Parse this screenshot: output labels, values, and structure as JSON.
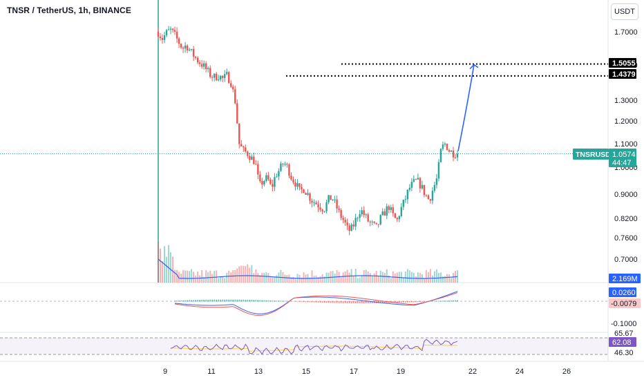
{
  "header": {
    "title": "TNSR / TetherUS, 1h, BINANCE",
    "currency": "USDT"
  },
  "chart_data": [
    {
      "type": "candlestick",
      "panel": "price",
      "symbol": "TNSRUSDT",
      "y_ticks": [
        "1.7000",
        "1.5000",
        "1.3000",
        "1.2000",
        "1.1000",
        "1.0000",
        "0.9000",
        "0.8200",
        "0.7600",
        "0.7000"
      ],
      "x_ticks": [
        "9",
        "11",
        "13",
        "15",
        "17",
        "19",
        "22",
        "24",
        "26"
      ],
      "last_price": "1.0574",
      "countdown": "44:47",
      "price_levels": [
        {
          "label": "1.5055",
          "value": 1.5055
        },
        {
          "label": "1.4379",
          "value": 1.4379
        }
      ],
      "projection": {
        "from_value": 1.06,
        "to_value": 1.5055
      },
      "approx_closes": [
        1.7,
        1.66,
        1.69,
        1.71,
        1.68,
        1.64,
        1.6,
        1.62,
        1.58,
        1.55,
        1.52,
        1.5,
        1.47,
        1.44,
        1.43,
        1.44,
        1.42,
        1.44,
        1.4,
        1.3,
        1.1,
        1.07,
        1.06,
        1.04,
        1.02,
        0.93,
        0.95,
        0.96,
        0.92,
        0.97,
        0.99,
        1.02,
        1.0,
        0.96,
        0.94,
        0.91,
        0.92,
        0.9,
        0.88,
        0.87,
        0.86,
        0.85,
        0.88,
        0.89,
        0.86,
        0.83,
        0.81,
        0.78,
        0.79,
        0.82,
        0.85,
        0.83,
        0.81,
        0.8,
        0.79,
        0.82,
        0.84,
        0.86,
        0.83,
        0.81,
        0.85,
        0.88,
        0.92,
        0.94,
        0.95,
        0.93,
        0.9,
        0.88,
        0.92,
        0.96,
        1.08,
        1.1,
        1.07,
        1.06,
        1.057
      ]
    },
    {
      "type": "bar",
      "panel": "volume",
      "last_value_label": "2.169M"
    },
    {
      "type": "line",
      "panel": "macd",
      "y_ticks": [
        "-0.1000"
      ],
      "value_labels": [
        "0.0260",
        "-0.0079"
      ]
    },
    {
      "type": "line",
      "panel": "rsi",
      "y_ticks": [
        "65.67",
        "46.30"
      ],
      "value_labels": [
        "62.08"
      ]
    }
  ],
  "colors": {
    "up": "#26a69a",
    "down": "#ef5350",
    "projection": "#2962ff",
    "volume_ma": "#2962ff",
    "rsi_line": "#7e57c2",
    "rsi_ma": "#f5d34a"
  }
}
